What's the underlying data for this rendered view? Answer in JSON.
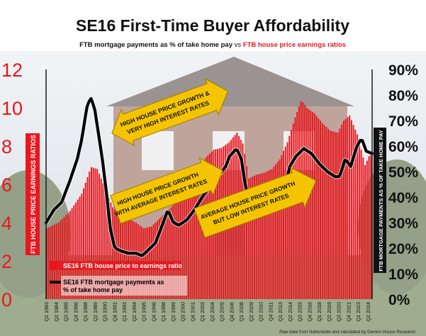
{
  "title": "SE16 First-Time Buyer Affordability",
  "subtitle": {
    "part1": "FTB mortgage payments as % of take home pay",
    "part2": " vs ",
    "part3": "FTB house price earnings ratios"
  },
  "source_note": "Raw data from Nationwide and calculated by Denton House Research",
  "colors": {
    "bars": "#e8171e",
    "line": "#000000",
    "title": "#111111",
    "left_axis": "#e8171e",
    "arrow_fill": "#f4c400",
    "arrow_stroke": "#9a7a00",
    "sky": "#cfd8e3",
    "house": "#8c5b4a",
    "roof": "#4a3b3a",
    "grass": "#4e6b32"
  },
  "annotations": [
    {
      "id": "high-growth-high-rates",
      "lines": [
        "HIGH HOUSE PRICE GROWTH &",
        "VERY HIGH INTEREST RATES"
      ]
    },
    {
      "id": "high-growth-avg-rates",
      "lines": [
        "HIGH HOUSE PRICE GROWTH",
        "WITH AVERAGE INTEREST RATES"
      ]
    },
    {
      "id": "avg-growth-low-rates",
      "lines": [
        "AVERAGE HOUSE PRICE GROWTH",
        "BUT LOW INTEREST RATES"
      ]
    }
  ],
  "chart_data": {
    "type": "bar+line",
    "title": "SE16 First-Time Buyer Affordability",
    "legend_position": "bottom-left",
    "left_axis": {
      "label": "FTB HOUSE PRICE EARNINGS RATIOS",
      "ticks": [
        "12",
        "10",
        "8",
        "6",
        "4",
        "2",
        "0"
      ],
      "range": [
        0,
        12
      ]
    },
    "right_axis": {
      "label": "FTB MORTGAGE PAYMENTS AS % OF TAKE HOME PAY",
      "ticks": [
        "90%",
        "80%",
        "70%",
        "60%",
        "50%",
        "40%",
        "30%",
        "20%",
        "10%",
        "0%"
      ],
      "range": [
        0,
        90
      ]
    },
    "x_labels": [
      "Q1 1983",
      "Q2 1984",
      "Q3 1985",
      "Q4 1986",
      "Q1 1988",
      "Q2 1989",
      "Q3 1990",
      "Q4 1991",
      "Q1 1993",
      "Q2 1994",
      "Q3 1995",
      "Q4 1996",
      "Q1 1998",
      "Q2 1999",
      "Q3 2000",
      "Q4 2001",
      "Q1 2003",
      "Q2 2004",
      "Q3 2005",
      "Q4 2006",
      "Q1 2008",
      "Q2 2009",
      "Q3 2010",
      "Q4 2011",
      "Q1 2013",
      "Q2 2014",
      "Q3 2015",
      "Q4 2016",
      "Q1 2018",
      "Q2 2019",
      "Q3 2020",
      "Q4 2021",
      "Q1 2023",
      "Q2 2024"
    ],
    "series": [
      {
        "name": "SE16 FTB house price to earnings ratio",
        "type": "bar",
        "axis": "left",
        "anchors": [
          [
            1983,
            3.7
          ],
          [
            1984.5,
            4.0
          ],
          [
            1986,
            4.6
          ],
          [
            1987.5,
            5.5
          ],
          [
            1988.7,
            6.9
          ],
          [
            1989.5,
            6.8
          ],
          [
            1990.5,
            5.8
          ],
          [
            1991.5,
            4.8
          ],
          [
            1992.5,
            4.3
          ],
          [
            1993.5,
            4.2
          ],
          [
            1994.5,
            4.0
          ],
          [
            1995.5,
            3.7
          ],
          [
            1996.5,
            3.8
          ],
          [
            1997.5,
            4.2
          ],
          [
            1998.5,
            4.6
          ],
          [
            1999.5,
            5.0
          ],
          [
            2000.5,
            5.6
          ],
          [
            2001.5,
            6.0
          ],
          [
            2002.5,
            6.7
          ],
          [
            2003.5,
            7.4
          ],
          [
            2004.5,
            7.8
          ],
          [
            2005.5,
            7.9
          ],
          [
            2006.5,
            8.2
          ],
          [
            2007.5,
            8.7
          ],
          [
            2008.3,
            8.1
          ],
          [
            2009,
            6.3
          ],
          [
            2010,
            6.5
          ],
          [
            2011,
            6.6
          ],
          [
            2012,
            6.8
          ],
          [
            2013,
            7.3
          ],
          [
            2014,
            8.2
          ],
          [
            2015,
            9.5
          ],
          [
            2015.8,
            10.4
          ],
          [
            2016.5,
            10.0
          ],
          [
            2017.5,
            9.7
          ],
          [
            2018.5,
            9.2
          ],
          [
            2019.5,
            8.8
          ],
          [
            2020.5,
            8.7
          ],
          [
            2021.2,
            9.3
          ],
          [
            2022,
            9.6
          ],
          [
            2023,
            8.6
          ],
          [
            2024,
            7.0
          ],
          [
            2024.75,
            7.7
          ]
        ]
      },
      {
        "name": "SE16 FTB mortgage payments as % of take home pay",
        "type": "line",
        "axis": "right",
        "anchors": [
          [
            1983,
            30
          ],
          [
            1984,
            35
          ],
          [
            1985,
            38
          ],
          [
            1986,
            46
          ],
          [
            1987,
            55
          ],
          [
            1987.6,
            63
          ],
          [
            1988.2,
            75
          ],
          [
            1988.7,
            79
          ],
          [
            1989.2,
            75
          ],
          [
            1989.6,
            67
          ],
          [
            1990.2,
            55
          ],
          [
            1990.8,
            40
          ],
          [
            1991.2,
            28
          ],
          [
            1991.8,
            20
          ],
          [
            1992.5,
            19
          ],
          [
            1993.5,
            18
          ],
          [
            1994.5,
            18
          ],
          [
            1995.3,
            17
          ],
          [
            1996,
            19
          ],
          [
            1997,
            22
          ],
          [
            1998,
            30
          ],
          [
            1998.6,
            35
          ],
          [
            1999.3,
            30
          ],
          [
            2000,
            29
          ],
          [
            2001,
            31
          ],
          [
            2002,
            35
          ],
          [
            2003,
            40
          ],
          [
            2004,
            44
          ],
          [
            2005,
            48
          ],
          [
            2006,
            52
          ],
          [
            2006.5,
            56
          ],
          [
            2007.4,
            59
          ],
          [
            2008,
            55
          ],
          [
            2008.6,
            43
          ],
          [
            2009.3,
            38
          ],
          [
            2010.5,
            38
          ],
          [
            2011.5,
            38
          ],
          [
            2012.5,
            39
          ],
          [
            2013.5,
            43
          ],
          [
            2014.2,
            52
          ],
          [
            2015,
            56
          ],
          [
            2016,
            59
          ],
          [
            2017,
            57
          ],
          [
            2018,
            53
          ],
          [
            2019,
            50
          ],
          [
            2020,
            48
          ],
          [
            2020.6,
            48
          ],
          [
            2021.3,
            55
          ],
          [
            2022,
            52
          ],
          [
            2022.8,
            60
          ],
          [
            2023.4,
            63
          ],
          [
            2024,
            58
          ],
          [
            2024.8,
            57
          ]
        ]
      }
    ]
  }
}
